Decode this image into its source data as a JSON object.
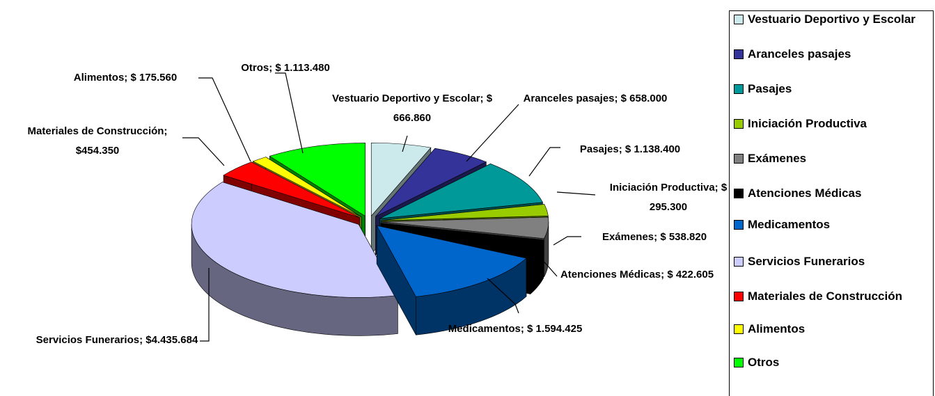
{
  "chart_data": {
    "type": "pie",
    "categories": [
      "Vestuario Deportivo y Escolar",
      "Aranceles pasajes",
      "Pasajes",
      "Iniciación Productiva",
      "Exámenes",
      "Atenciones Médicas",
      "Medicamentos",
      "Servicios Funerarios",
      "Materiales de Construcción",
      "Alimentos",
      "Otros"
    ],
    "values": [
      666860,
      658000,
      1138400,
      295300,
      538820,
      422605,
      1594425,
      4435684,
      454350,
      175560,
      1113480
    ],
    "value_labels": [
      "Vestuario Deportivo y Escolar; $ 666.860",
      "Aranceles pasajes; $ 658.000",
      "Pasajes; $ 1.138.400",
      "Iniciación Productiva; $ 295.300",
      "Exámenes; $ 538.820",
      "Atenciones Médicas; $ 422.605",
      "Medicamentos; $ 1.594.425",
      "Servicios Funerarios; $4.435.684",
      "Materiales de Construcción;  $454.350",
      "Alimentos; $ 175.560",
      "Otros; $ 1.113.480"
    ],
    "colors": [
      "#cce9ec",
      "#333399",
      "#009999",
      "#99cc00",
      "#808080",
      "#000000",
      "#0066cc",
      "#ccccff",
      "#ff0000",
      "#ffff00",
      "#00ff00"
    ],
    "legend": "right"
  }
}
